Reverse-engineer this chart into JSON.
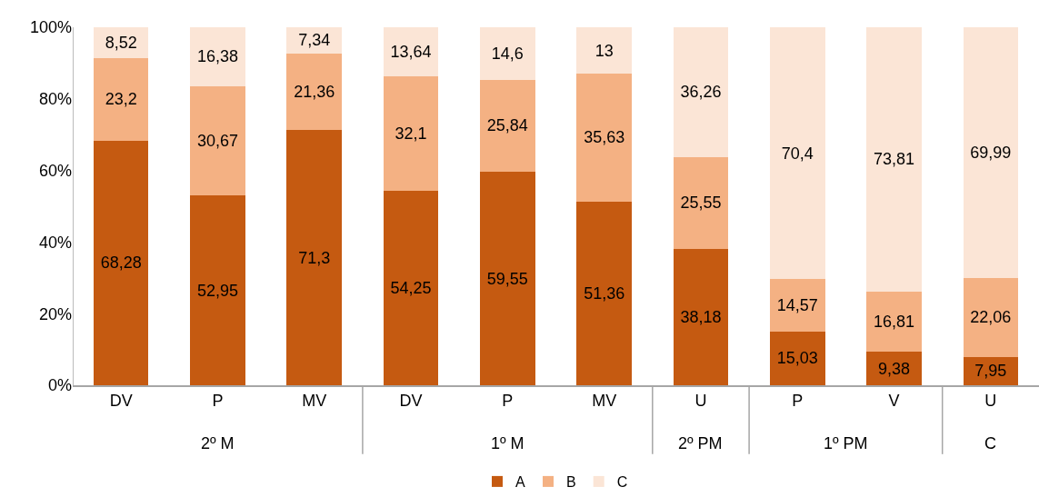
{
  "chart_data": {
    "type": "bar",
    "stacked": true,
    "categories": [
      "DV",
      "P",
      "MV",
      "DV",
      "P",
      "MV",
      "U",
      "P",
      "V",
      "U"
    ],
    "series": [
      {
        "name": "A",
        "color": "#c55a11",
        "values": [
          68.28,
          52.95,
          71.3,
          54.25,
          59.55,
          51.36,
          38.18,
          15.03,
          9.38,
          7.95
        ],
        "value_labels": [
          "68,28",
          "52,95",
          "71,3",
          "54,25",
          "59,55",
          "51,36",
          "38,18",
          "15,03",
          "9,38",
          "7,95"
        ]
      },
      {
        "name": "B",
        "color": "#f4b183",
        "values": [
          23.2,
          30.67,
          21.36,
          32.1,
          25.84,
          35.63,
          25.55,
          14.57,
          16.81,
          22.06
        ],
        "value_labels": [
          "23,2",
          "30,67",
          "21,36",
          "32,1",
          "25,84",
          "35,63",
          "25,55",
          "14,57",
          "16,81",
          "22,06"
        ]
      },
      {
        "name": "C",
        "color": "#fbe5d6",
        "values": [
          8.52,
          16.38,
          7.34,
          13.64,
          14.6,
          13,
          36.26,
          70.4,
          73.81,
          69.99
        ],
        "value_labels": [
          "8,52",
          "16,38",
          "7,34",
          "13,64",
          "14,6",
          "13",
          "36,26",
          "70,4",
          "73,81",
          "69,99"
        ]
      }
    ],
    "annotations": [
      "2º M",
      "1º M",
      "2º PM",
      "1º PM",
      "C"
    ],
    "ylim": [
      0,
      100
    ],
    "yticks": [
      {
        "value": 0,
        "label": "0%"
      },
      {
        "value": 20,
        "label": "20%"
      },
      {
        "value": 40,
        "label": "40%"
      },
      {
        "value": 60,
        "label": "60%"
      },
      {
        "value": 80,
        "label": "80%"
      },
      {
        "value": 100,
        "label": "100%"
      }
    ],
    "grid": false,
    "legend": "bottom"
  }
}
